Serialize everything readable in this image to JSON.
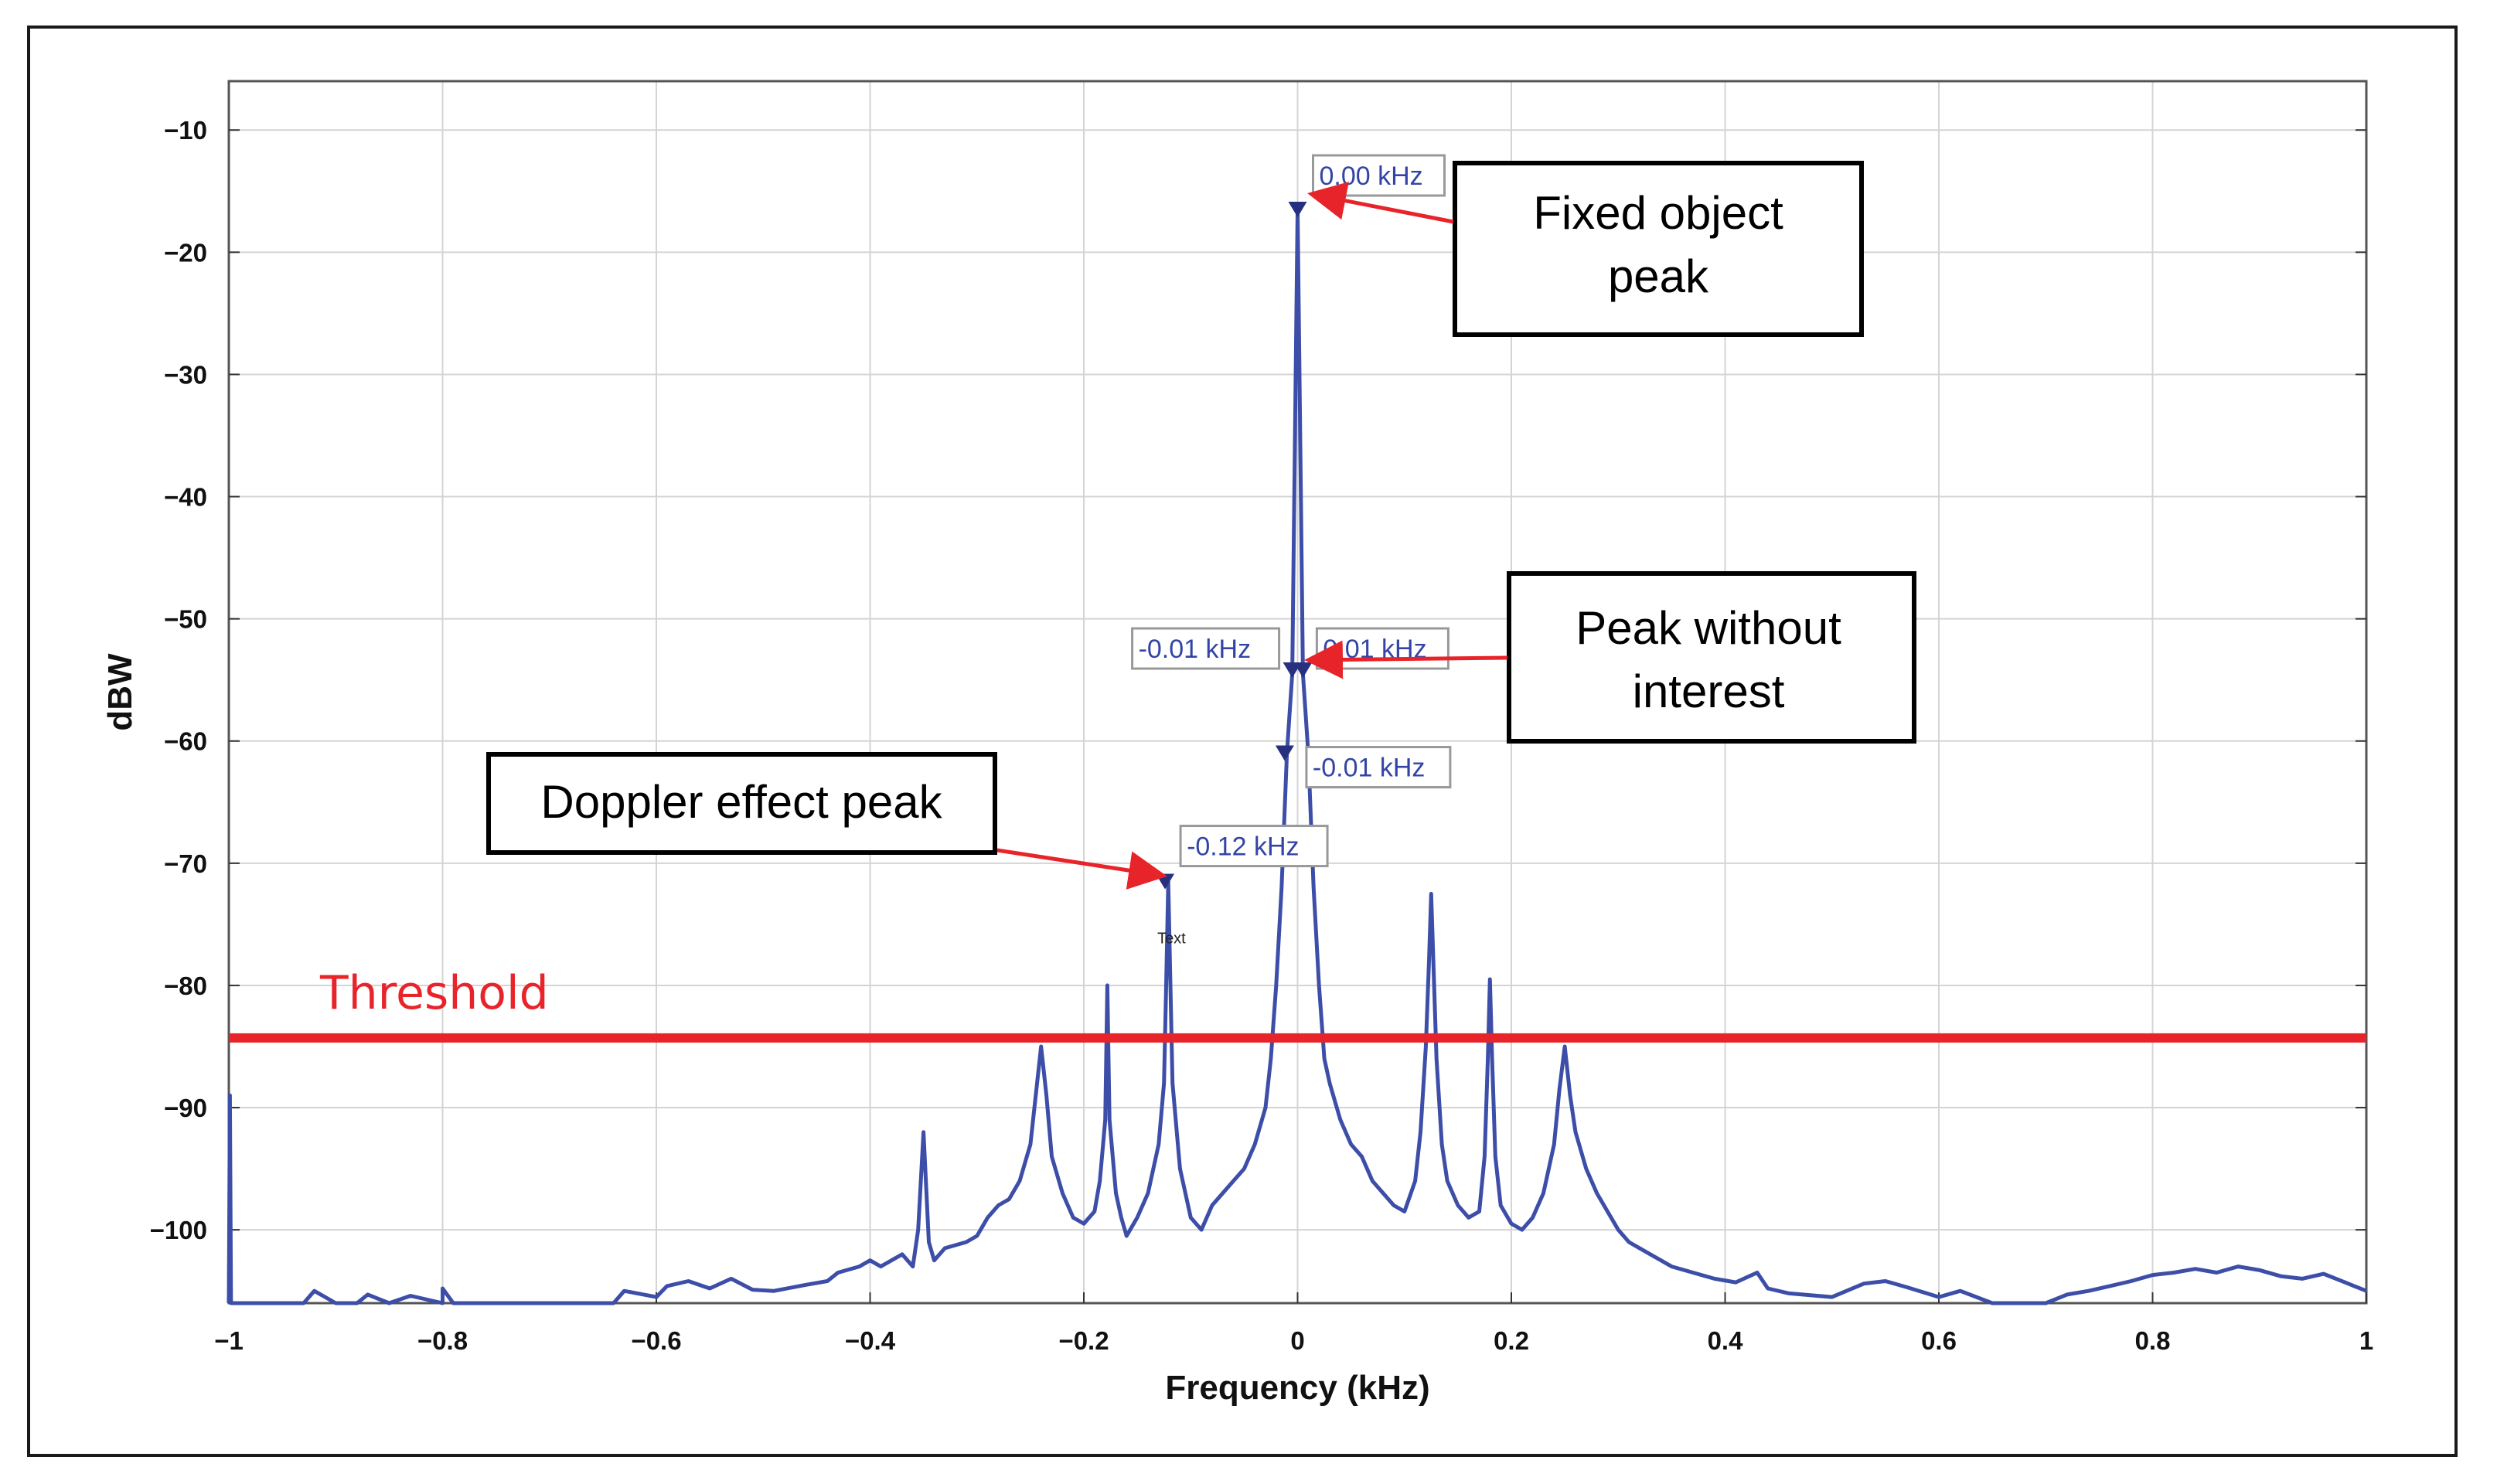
{
  "chart_data": {
    "type": "line",
    "title": "",
    "xlabel": "Frequency (kHz)",
    "ylabel": "dBW",
    "xlim": [
      -1,
      1
    ],
    "ylim": [
      -106,
      -6
    ],
    "grid": true,
    "x_ticks": [
      -1,
      -0.8,
      -0.6,
      -0.4,
      -0.2,
      0,
      0.2,
      0.4,
      0.6,
      0.8,
      1
    ],
    "x_tick_labels": [
      "−1",
      "−0.8",
      "−0.6",
      "−0.4",
      "−0.2",
      "0",
      "0.2",
      "0.4",
      "0.6",
      "0.8",
      "1"
    ],
    "y_ticks": [
      -10,
      -20,
      -30,
      -40,
      -50,
      -60,
      -70,
      -80,
      -90,
      -100
    ],
    "y_tick_labels": [
      "−10",
      "−20",
      "−30",
      "−40",
      "−50",
      "−60",
      "−70",
      "−80",
      "−90",
      "−100"
    ],
    "series": [
      {
        "name": "spectrum",
        "color": "#3d4ea8",
        "points": [
          [
            -1.0,
            -106
          ],
          [
            -0.999,
            -89
          ],
          [
            -0.998,
            -106
          ],
          [
            -0.95,
            -106
          ],
          [
            -0.93,
            -106
          ],
          [
            -0.92,
            -105
          ],
          [
            -0.9,
            -106
          ],
          [
            -0.88,
            -106
          ],
          [
            -0.87,
            -105.3
          ],
          [
            -0.85,
            -106
          ],
          [
            -0.83,
            -105.4
          ],
          [
            -0.8,
            -106
          ],
          [
            -0.8,
            -104.8
          ],
          [
            -0.79,
            -106
          ],
          [
            -0.7,
            -106
          ],
          [
            -0.64,
            -106
          ],
          [
            -0.63,
            -105
          ],
          [
            -0.6,
            -105.5
          ],
          [
            -0.59,
            -104.6
          ],
          [
            -0.57,
            -104.2
          ],
          [
            -0.55,
            -104.8
          ],
          [
            -0.53,
            -104
          ],
          [
            -0.51,
            -104.9
          ],
          [
            -0.49,
            -105
          ],
          [
            -0.46,
            -104.5
          ],
          [
            -0.44,
            -104.2
          ],
          [
            -0.43,
            -103.5
          ],
          [
            -0.41,
            -103
          ],
          [
            -0.4,
            -102.5
          ],
          [
            -0.39,
            -103
          ],
          [
            -0.37,
            -102
          ],
          [
            -0.36,
            -103
          ],
          [
            -0.355,
            -100
          ],
          [
            -0.35,
            -92
          ],
          [
            -0.345,
            -101
          ],
          [
            -0.34,
            -102.5
          ],
          [
            -0.33,
            -101.5
          ],
          [
            -0.31,
            -101
          ],
          [
            -0.3,
            -100.5
          ],
          [
            -0.29,
            -99
          ],
          [
            -0.28,
            -98
          ],
          [
            -0.27,
            -97.5
          ],
          [
            -0.26,
            -96
          ],
          [
            -0.25,
            -93
          ],
          [
            -0.245,
            -89
          ],
          [
            -0.24,
            -85
          ],
          [
            -0.235,
            -89
          ],
          [
            -0.23,
            -94
          ],
          [
            -0.22,
            -97
          ],
          [
            -0.21,
            -99
          ],
          [
            -0.2,
            -99.5
          ],
          [
            -0.19,
            -98.5
          ],
          [
            -0.185,
            -96
          ],
          [
            -0.18,
            -91
          ],
          [
            -0.178,
            -80
          ],
          [
            -0.176,
            -91
          ],
          [
            -0.17,
            -97
          ],
          [
            -0.165,
            -99
          ],
          [
            -0.16,
            -100.5
          ],
          [
            -0.15,
            -99
          ],
          [
            -0.14,
            -97
          ],
          [
            -0.13,
            -93
          ],
          [
            -0.125,
            -88
          ],
          [
            -0.123,
            -80
          ],
          [
            -0.121,
            -71.5
          ],
          [
            -0.119,
            -80
          ],
          [
            -0.117,
            -88
          ],
          [
            -0.11,
            -95
          ],
          [
            -0.1,
            -99
          ],
          [
            -0.09,
            -100
          ],
          [
            -0.08,
            -98
          ],
          [
            -0.07,
            -97
          ],
          [
            -0.06,
            -96
          ],
          [
            -0.05,
            -95
          ],
          [
            -0.04,
            -93
          ],
          [
            -0.03,
            -90
          ],
          [
            -0.025,
            -86
          ],
          [
            -0.02,
            -80
          ],
          [
            -0.015,
            -72
          ],
          [
            -0.01,
            -61
          ],
          [
            -0.005,
            -54.5
          ],
          [
            0.0,
            -16.5
          ],
          [
            0.005,
            -54.5
          ],
          [
            0.01,
            -61
          ],
          [
            0.015,
            -72
          ],
          [
            0.02,
            -80
          ],
          [
            0.025,
            -86
          ],
          [
            0.03,
            -88
          ],
          [
            0.04,
            -91
          ],
          [
            0.05,
            -93
          ],
          [
            0.06,
            -94
          ],
          [
            0.07,
            -96
          ],
          [
            0.08,
            -97
          ],
          [
            0.09,
            -98
          ],
          [
            0.1,
            -98.5
          ],
          [
            0.11,
            -96
          ],
          [
            0.115,
            -92
          ],
          [
            0.12,
            -85
          ],
          [
            0.123,
            -78
          ],
          [
            0.125,
            -72.5
          ],
          [
            0.127,
            -78
          ],
          [
            0.13,
            -86
          ],
          [
            0.135,
            -93
          ],
          [
            0.14,
            -96
          ],
          [
            0.15,
            -98
          ],
          [
            0.16,
            -99
          ],
          [
            0.17,
            -98.5
          ],
          [
            0.175,
            -94
          ],
          [
            0.178,
            -86
          ],
          [
            0.18,
            -79.5
          ],
          [
            0.182,
            -86
          ],
          [
            0.185,
            -94
          ],
          [
            0.19,
            -98
          ],
          [
            0.2,
            -99.5
          ],
          [
            0.21,
            -100
          ],
          [
            0.22,
            -99
          ],
          [
            0.23,
            -97
          ],
          [
            0.24,
            -93
          ],
          [
            0.245,
            -88.5
          ],
          [
            0.25,
            -85
          ],
          [
            0.255,
            -89
          ],
          [
            0.26,
            -92
          ],
          [
            0.27,
            -95
          ],
          [
            0.28,
            -97
          ],
          [
            0.29,
            -98.5
          ],
          [
            0.3,
            -100
          ],
          [
            0.31,
            -101
          ],
          [
            0.32,
            -101.5
          ],
          [
            0.33,
            -102
          ],
          [
            0.34,
            -102.5
          ],
          [
            0.35,
            -103
          ],
          [
            0.37,
            -103.5
          ],
          [
            0.39,
            -104
          ],
          [
            0.41,
            -104.3
          ],
          [
            0.43,
            -103.5
          ],
          [
            0.44,
            -104.8
          ],
          [
            0.46,
            -105.2
          ],
          [
            0.5,
            -105.5
          ],
          [
            0.53,
            -104.4
          ],
          [
            0.55,
            -104.2
          ],
          [
            0.57,
            -104.7
          ],
          [
            0.6,
            -105.5
          ],
          [
            0.62,
            -105
          ],
          [
            0.65,
            -106
          ],
          [
            0.7,
            -106
          ],
          [
            0.72,
            -105.3
          ],
          [
            0.74,
            -105
          ],
          [
            0.76,
            -104.6
          ],
          [
            0.78,
            -104.2
          ],
          [
            0.8,
            -103.7
          ],
          [
            0.82,
            -103.5
          ],
          [
            0.84,
            -103.2
          ],
          [
            0.86,
            -103.5
          ],
          [
            0.88,
            -103
          ],
          [
            0.9,
            -103.3
          ],
          [
            0.92,
            -103.8
          ],
          [
            0.94,
            -104
          ],
          [
            0.96,
            -103.6
          ],
          [
            0.98,
            -104.3
          ],
          [
            1.0,
            -105
          ]
        ]
      }
    ],
    "markers": [
      {
        "x": 0.0,
        "y": -16.5,
        "label": "0.00 kHz"
      },
      {
        "x": -0.005,
        "y": -54.2,
        "label": "-0.01 kHz"
      },
      {
        "x": 0.005,
        "y": -54.2,
        "label": "0.01 kHz"
      },
      {
        "x": -0.012,
        "y": -61.0,
        "label": "-0.01 kHz"
      },
      {
        "x": -0.124,
        "y": -71.5,
        "label": "-0.12 kHz"
      }
    ],
    "threshold": {
      "y": -84.3,
      "label": "Threshold"
    },
    "annotations": [
      {
        "text": "Fixed object peak",
        "lines": [
          "Fixed object",
          "peak"
        ]
      },
      {
        "text": "Peak without interest",
        "lines": [
          "Peak without",
          "interest"
        ]
      },
      {
        "text": "Doppler effect peak",
        "lines": [
          "Doppler effect peak"
        ]
      }
    ],
    "small_text": "Text"
  },
  "colors": {
    "line": "#3d4ea8",
    "marker_label": "#3344a6",
    "threshold": "#e8242b",
    "arrow": "#e8242b",
    "grid": "#d4d4d4"
  }
}
